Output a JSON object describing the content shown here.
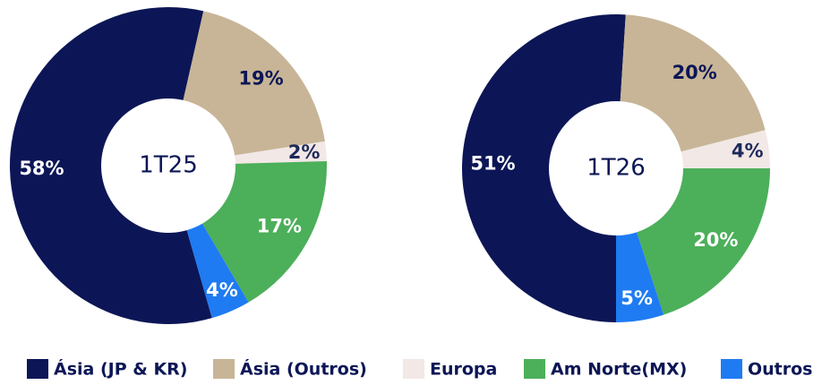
{
  "chart_data": [
    {
      "type": "donut",
      "center_label": "1T25",
      "categories": [
        "Ásia (JP & KR)",
        "Ásia (Outros)",
        "Europa",
        "Am Norte(MX)",
        "Outros"
      ],
      "colors": [
        "#0c1656",
        "#c8b597",
        "#f2e8e6",
        "#4caf5a",
        "#1f7bf2"
      ],
      "values": [
        58,
        19,
        2,
        17,
        4
      ],
      "value_labels": [
        "58%",
        "19%",
        "2%",
        "17%",
        "4%"
      ]
    },
    {
      "type": "donut",
      "center_label": "1T26",
      "values": [
        51,
        20,
        4,
        20,
        5
      ],
      "value_labels": [
        "51%",
        "20%",
        "4%",
        "20%",
        "5%"
      ]
    }
  ]
}
